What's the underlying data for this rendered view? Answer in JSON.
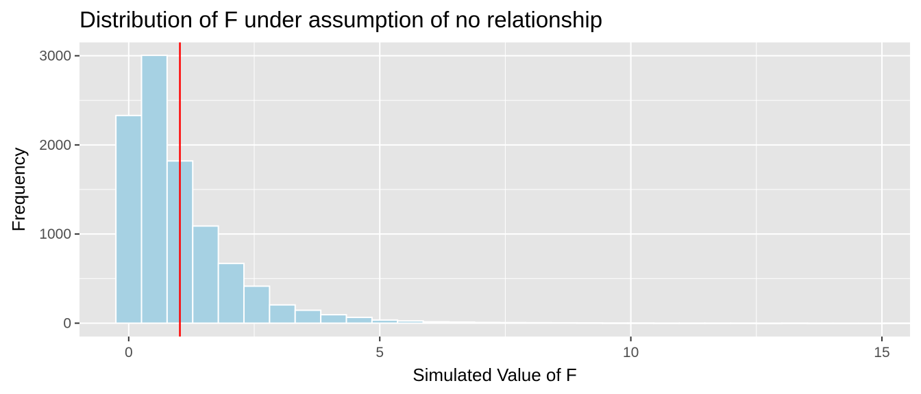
{
  "chart_data": {
    "type": "bar",
    "title": "Distribution of F under assumption of no relationship",
    "xlabel": "Simulated Value of F",
    "ylabel": "Frequency",
    "xlim": [
      -0.98,
      15.56
    ],
    "ylim": [
      -150,
      3150
    ],
    "x_ticks": [
      0,
      5,
      10,
      15
    ],
    "x_tick_labels": [
      "0",
      "5",
      "10",
      "15"
    ],
    "y_ticks": [
      0,
      1000,
      2000,
      3000
    ],
    "y_tick_labels": [
      "0",
      "1000",
      "2000",
      "3000"
    ],
    "grid": true,
    "legend": "none",
    "bin_width": 0.51,
    "bin_centers": [
      0.0,
      0.51,
      1.02,
      1.53,
      2.04,
      2.55,
      3.06,
      3.57,
      4.08,
      4.59,
      5.1,
      5.61,
      6.12,
      6.63,
      7.14,
      7.65,
      8.16,
      8.67,
      9.18,
      9.69,
      10.2,
      10.71,
      11.22,
      11.73,
      12.24,
      12.75,
      13.26,
      13.77,
      14.28,
      14.79,
      15.3
    ],
    "counts": [
      2330,
      3005,
      1820,
      1090,
      670,
      415,
      205,
      145,
      95,
      65,
      35,
      25,
      15,
      12,
      8,
      6,
      5,
      4,
      3,
      2,
      2,
      1,
      1,
      1,
      1,
      0,
      1,
      0,
      0,
      0,
      1
    ],
    "reference_line": {
      "x": 1.02,
      "color": "#FF0000"
    },
    "colors": {
      "panel_background": "#E5E5E5",
      "gridline": "#FFFFFF",
      "bar_fill": "#A6D1E3",
      "bar_outline": "#FFFFFF",
      "tick_label": "#4D4D4D",
      "axis_tick": "#333333",
      "text": "#000000"
    }
  }
}
